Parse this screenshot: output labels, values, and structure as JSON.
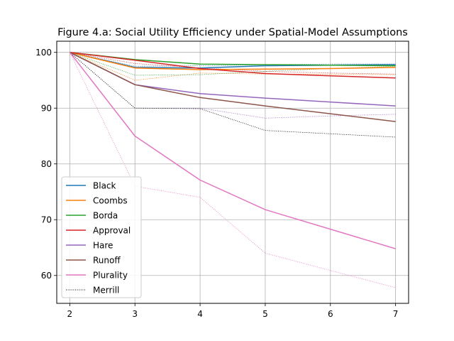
{
  "chart_data": {
    "type": "line",
    "title": "Figure 4.a: Social Utility Efficiency under Spatial-Model Assumptions",
    "xlabel": "",
    "ylabel": "",
    "x": [
      2,
      3,
      4,
      5,
      6,
      7
    ],
    "xlim": [
      1.8,
      7.2
    ],
    "ylim": [
      55,
      102
    ],
    "xticks": [
      "2",
      "3",
      "4",
      "5",
      "6",
      "7"
    ],
    "yticks": [
      "60",
      "70",
      "80",
      "90",
      "100"
    ],
    "grid": true,
    "legend_position": "lower-left",
    "legend": [
      "Black",
      "Coombs",
      "Borda",
      "Approval",
      "Hare",
      "Runoff",
      "Plurality",
      "Merrill"
    ],
    "series": [
      {
        "name": "Black",
        "color": "#1f77b4",
        "style": "solid",
        "values": [
          100,
          97.3,
          97.2,
          97.6,
          97.7,
          97.8
        ]
      },
      {
        "name": "Coombs",
        "color": "#ff7f0e",
        "style": "solid",
        "values": [
          100,
          97.2,
          96.9,
          97.0,
          97.1,
          97.3
        ]
      },
      {
        "name": "Borda",
        "color": "#2ca02c",
        "style": "solid",
        "values": [
          100,
          98.7,
          97.9,
          97.8,
          97.7,
          97.6
        ]
      },
      {
        "name": "Approval",
        "color": "#d62728",
        "style": "solid",
        "values": [
          100,
          98.6,
          97.1,
          96.2,
          95.8,
          95.4
        ]
      },
      {
        "name": "Hare",
        "color": "#9467bd",
        "style": "solid",
        "values": [
          100,
          94.2,
          92.6,
          91.8,
          91.1,
          90.4
        ]
      },
      {
        "name": "Runoff",
        "color": "#8c564b",
        "style": "solid",
        "values": [
          100,
          94.2,
          91.9,
          90.4,
          89.0,
          87.6
        ]
      },
      {
        "name": "Plurality",
        "color": "#e377c2",
        "style": "solid",
        "values": [
          100,
          85.0,
          77.1,
          71.8,
          68.3,
          64.8
        ]
      },
      {
        "name": "Merrill",
        "color": "#000000",
        "style": "dotted",
        "values": [
          100,
          90.0,
          89.9,
          86.0,
          85.4,
          84.8
        ]
      }
    ],
    "reference_series": [
      {
        "name": "Black (Merrill)",
        "color": "#1f77b4",
        "values": [
          100,
          97.5,
          97.6,
          97.8,
          97.9,
          97.9
        ]
      },
      {
        "name": "Coombs (Merrill)",
        "color": "#ff7f0e",
        "values": [
          100,
          95.0,
          96.3,
          96.1,
          96.1,
          96.0
        ]
      },
      {
        "name": "Borda (Merrill)",
        "color": "#2ca02c",
        "values": [
          100,
          95.9,
          96.0,
          96.6,
          97.1,
          97.5
        ]
      },
      {
        "name": "Approval (Merrill)",
        "color": "#d62728",
        "values": [
          100,
          98.0,
          97.2,
          96.6,
          96.3,
          96.1
        ]
      },
      {
        "name": "Hare (Merrill)",
        "color": "#9467bd",
        "values": [
          100,
          90.0,
          90.0,
          88.2,
          88.6,
          88.9
        ]
      },
      {
        "name": "Plurality (Merrill)",
        "color": "#e377c2",
        "values": [
          100,
          76.0,
          74.0,
          64.0,
          60.9,
          57.8
        ]
      }
    ]
  }
}
